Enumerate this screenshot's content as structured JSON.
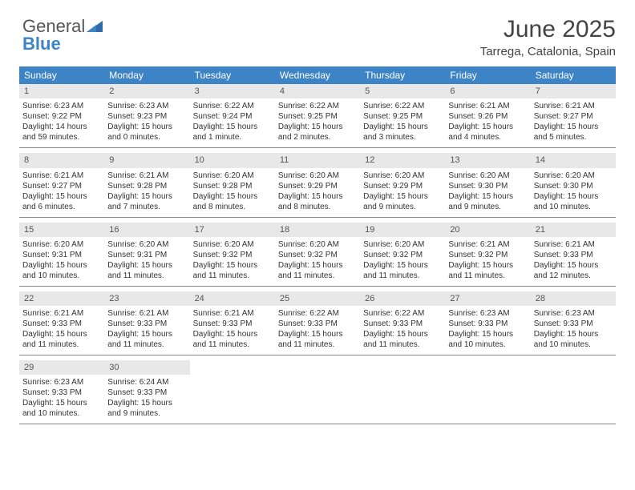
{
  "brand": {
    "part1": "General",
    "part2": "Blue"
  },
  "header": {
    "title": "June 2025",
    "location": "Tarrega, Catalonia, Spain"
  },
  "colors": {
    "header_bg": "#3d84c6",
    "header_fg": "#ffffff",
    "daynum_bg": "#e8e8e8",
    "text": "#333333",
    "rule": "#888888"
  },
  "dow": [
    "Sunday",
    "Monday",
    "Tuesday",
    "Wednesday",
    "Thursday",
    "Friday",
    "Saturday"
  ],
  "weeks": [
    [
      {
        "n": "1",
        "sunrise": "6:23 AM",
        "sunset": "9:22 PM",
        "daylight": "14 hours and 59 minutes."
      },
      {
        "n": "2",
        "sunrise": "6:23 AM",
        "sunset": "9:23 PM",
        "daylight": "15 hours and 0 minutes."
      },
      {
        "n": "3",
        "sunrise": "6:22 AM",
        "sunset": "9:24 PM",
        "daylight": "15 hours and 1 minute."
      },
      {
        "n": "4",
        "sunrise": "6:22 AM",
        "sunset": "9:25 PM",
        "daylight": "15 hours and 2 minutes."
      },
      {
        "n": "5",
        "sunrise": "6:22 AM",
        "sunset": "9:25 PM",
        "daylight": "15 hours and 3 minutes."
      },
      {
        "n": "6",
        "sunrise": "6:21 AM",
        "sunset": "9:26 PM",
        "daylight": "15 hours and 4 minutes."
      },
      {
        "n": "7",
        "sunrise": "6:21 AM",
        "sunset": "9:27 PM",
        "daylight": "15 hours and 5 minutes."
      }
    ],
    [
      {
        "n": "8",
        "sunrise": "6:21 AM",
        "sunset": "9:27 PM",
        "daylight": "15 hours and 6 minutes."
      },
      {
        "n": "9",
        "sunrise": "6:21 AM",
        "sunset": "9:28 PM",
        "daylight": "15 hours and 7 minutes."
      },
      {
        "n": "10",
        "sunrise": "6:20 AM",
        "sunset": "9:28 PM",
        "daylight": "15 hours and 8 minutes."
      },
      {
        "n": "11",
        "sunrise": "6:20 AM",
        "sunset": "9:29 PM",
        "daylight": "15 hours and 8 minutes."
      },
      {
        "n": "12",
        "sunrise": "6:20 AM",
        "sunset": "9:29 PM",
        "daylight": "15 hours and 9 minutes."
      },
      {
        "n": "13",
        "sunrise": "6:20 AM",
        "sunset": "9:30 PM",
        "daylight": "15 hours and 9 minutes."
      },
      {
        "n": "14",
        "sunrise": "6:20 AM",
        "sunset": "9:30 PM",
        "daylight": "15 hours and 10 minutes."
      }
    ],
    [
      {
        "n": "15",
        "sunrise": "6:20 AM",
        "sunset": "9:31 PM",
        "daylight": "15 hours and 10 minutes."
      },
      {
        "n": "16",
        "sunrise": "6:20 AM",
        "sunset": "9:31 PM",
        "daylight": "15 hours and 11 minutes."
      },
      {
        "n": "17",
        "sunrise": "6:20 AM",
        "sunset": "9:32 PM",
        "daylight": "15 hours and 11 minutes."
      },
      {
        "n": "18",
        "sunrise": "6:20 AM",
        "sunset": "9:32 PM",
        "daylight": "15 hours and 11 minutes."
      },
      {
        "n": "19",
        "sunrise": "6:20 AM",
        "sunset": "9:32 PM",
        "daylight": "15 hours and 11 minutes."
      },
      {
        "n": "20",
        "sunrise": "6:21 AM",
        "sunset": "9:32 PM",
        "daylight": "15 hours and 11 minutes."
      },
      {
        "n": "21",
        "sunrise": "6:21 AM",
        "sunset": "9:33 PM",
        "daylight": "15 hours and 12 minutes."
      }
    ],
    [
      {
        "n": "22",
        "sunrise": "6:21 AM",
        "sunset": "9:33 PM",
        "daylight": "15 hours and 11 minutes."
      },
      {
        "n": "23",
        "sunrise": "6:21 AM",
        "sunset": "9:33 PM",
        "daylight": "15 hours and 11 minutes."
      },
      {
        "n": "24",
        "sunrise": "6:21 AM",
        "sunset": "9:33 PM",
        "daylight": "15 hours and 11 minutes."
      },
      {
        "n": "25",
        "sunrise": "6:22 AM",
        "sunset": "9:33 PM",
        "daylight": "15 hours and 11 minutes."
      },
      {
        "n": "26",
        "sunrise": "6:22 AM",
        "sunset": "9:33 PM",
        "daylight": "15 hours and 11 minutes."
      },
      {
        "n": "27",
        "sunrise": "6:23 AM",
        "sunset": "9:33 PM",
        "daylight": "15 hours and 10 minutes."
      },
      {
        "n": "28",
        "sunrise": "6:23 AM",
        "sunset": "9:33 PM",
        "daylight": "15 hours and 10 minutes."
      }
    ],
    [
      {
        "n": "29",
        "sunrise": "6:23 AM",
        "sunset": "9:33 PM",
        "daylight": "15 hours and 10 minutes."
      },
      {
        "n": "30",
        "sunrise": "6:24 AM",
        "sunset": "9:33 PM",
        "daylight": "15 hours and 9 minutes."
      },
      null,
      null,
      null,
      null,
      null
    ]
  ],
  "labels": {
    "sunrise": "Sunrise: ",
    "sunset": "Sunset: ",
    "daylight": "Daylight: "
  }
}
